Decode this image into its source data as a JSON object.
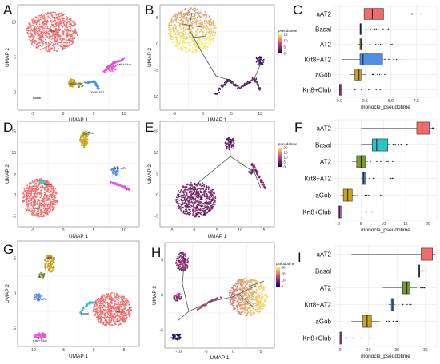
{
  "colors": {
    "aAT2": "#f26b6b",
    "Basal": "#2ec4c4",
    "AT2": "#7a9a2a",
    "Krt8+AT2": "#4f8fe6",
    "aGob": "#c9a21a",
    "Krt8+Club": "#e64fd6",
    "pseudotime_low": "#1e0a5a",
    "pseudotime_mid": "#c2407a",
    "pseudotime_high": "#f5e86a",
    "trajectory": "#555555",
    "grid": "#e3e3e3"
  },
  "chart_data": [
    {
      "panel": "A",
      "type": "scatter",
      "xlabel": "UMAP 1",
      "ylabel": "UMAP 2",
      "xticks": [
        "-5",
        "0",
        "5",
        "10"
      ],
      "yticks": [
        "10",
        "5",
        "0"
      ],
      "cluster_labels": [
        "aAT2",
        "aGob",
        "Basal",
        "Krt8+AT2",
        "Krt8+Club"
      ]
    },
    {
      "panel": "B",
      "type": "scatter",
      "xlabel": "UMAP 1",
      "ylabel": "UMAP 2",
      "xticks": [
        "-5",
        "0",
        "5",
        "10"
      ],
      "yticks": [
        "5",
        "0",
        "-5",
        "-10"
      ],
      "legend_title": "pseudotime",
      "legend_ticks": [
        "0",
        "5",
        "10",
        "15"
      ],
      "legend_placement": "right"
    },
    {
      "panel": "C",
      "type": "boxplot",
      "xlabel": "monocle_pseudotime",
      "xticks": [
        "0.0",
        "2.5",
        "5.0",
        "7.5"
      ],
      "xlim": [
        -0.5,
        9.5
      ],
      "categories": [
        "aAT2",
        "Basal",
        "AT2",
        "Krt8+AT2",
        "aGob",
        "Krt8+Club"
      ],
      "boxes": [
        {
          "category": "aAT2",
          "q1": 2.4,
          "median": 3.2,
          "q3": 4.3,
          "whisker_low": 0.1,
          "whisker_high": 7.0
        },
        {
          "category": "Basal",
          "q1": 2.0,
          "median": 2.05,
          "q3": 2.1,
          "whisker_low": 2.0,
          "whisker_high": 2.1
        },
        {
          "category": "AT2",
          "q1": 2.0,
          "median": 2.1,
          "q3": 2.2,
          "whisker_low": 1.8,
          "whisker_high": 2.3
        },
        {
          "category": "Krt8+AT2",
          "q1": 2.0,
          "median": 2.3,
          "q3": 4.2,
          "whisker_low": 0.2,
          "whisker_high": 4.3
        },
        {
          "category": "aGob",
          "q1": 1.5,
          "median": 1.9,
          "q3": 2.1,
          "whisker_low": 1.0,
          "whisker_high": 2.6
        },
        {
          "category": "Krt8+Club",
          "q1": 0.0,
          "median": 0.05,
          "q3": 0.2,
          "whisker_low": 0.0,
          "whisker_high": 0.3
        }
      ]
    },
    {
      "panel": "D",
      "type": "scatter",
      "xlabel": "UMAP 1",
      "ylabel": "UMAP 2",
      "xticks": [
        "-5",
        "0",
        "5",
        "10"
      ],
      "yticks": [
        "15",
        "10",
        "5",
        "0",
        "-5"
      ],
      "cluster_labels": [
        "aGob",
        "Krt8+AT2",
        "Basal",
        "aAT2"
      ]
    },
    {
      "panel": "E",
      "type": "scatter",
      "xlabel": "UMAP 1",
      "ylabel": "UMAP 2",
      "xticks": [
        "-5",
        "0",
        "5",
        "10",
        "15"
      ],
      "yticks": [
        "15",
        "10",
        "5",
        "0",
        "-5"
      ],
      "legend_title": "pseudotime",
      "legend_ticks": [
        "0",
        "5",
        "10",
        "15",
        "20"
      ],
      "legend_placement": "right"
    },
    {
      "panel": "F",
      "type": "boxplot",
      "xlabel": "monocle_pseudotime",
      "xticks": [
        "0",
        "5",
        "10",
        "15",
        "20"
      ],
      "xlim": [
        -1,
        22
      ],
      "categories": [
        "aAT2",
        "Basal",
        "AT2",
        "Krt8+AT2",
        "aGob",
        "Krt8+Club"
      ],
      "boxes": [
        {
          "category": "aAT2",
          "q1": 17.5,
          "median": 18.7,
          "q3": 20.3,
          "whisker_low": 5.0,
          "whisker_high": 21.0
        },
        {
          "category": "Basal",
          "q1": 7.5,
          "median": 8.5,
          "q3": 11.0,
          "whisker_low": 5.0,
          "whisker_high": 11.5
        },
        {
          "category": "AT2",
          "q1": 4.0,
          "median": 5.0,
          "q3": 6.0,
          "whisker_low": 3.0,
          "whisker_high": 6.5
        },
        {
          "category": "Krt8+AT2",
          "q1": 5.3,
          "median": 5.6,
          "q3": 5.9,
          "whisker_low": 5.0,
          "whisker_high": 6.0
        },
        {
          "category": "aGob",
          "q1": 1.0,
          "median": 2.0,
          "q3": 3.0,
          "whisker_low": 0.5,
          "whisker_high": 3.8
        },
        {
          "category": "Krt8+Club",
          "q1": 0.0,
          "median": 0.2,
          "q3": 0.5,
          "whisker_low": 0.0,
          "whisker_high": 0.6
        }
      ]
    },
    {
      "panel": "G",
      "type": "scatter",
      "xlabel": "UMAP 1",
      "ylabel": "UMAP 2",
      "xticks": [
        "-10",
        "-5",
        "0",
        "5"
      ],
      "yticks": [
        "5",
        "0",
        "-5"
      ],
      "cluster_labels": [
        "aGob",
        "AT2",
        "Krt8+AT2",
        "Basal",
        "aAT2",
        "Krt8+Club"
      ]
    },
    {
      "panel": "H",
      "type": "scatter",
      "xlabel": "UMAP 1",
      "ylabel": "UMAP 2",
      "xticks": [
        "-10",
        "-5",
        "0",
        "5"
      ],
      "yticks": [
        "5",
        "0",
        "-5"
      ],
      "legend_title": "pseudotime",
      "legend_ticks": [
        "0",
        "10",
        "20",
        "30"
      ],
      "legend_placement": "right"
    },
    {
      "panel": "I",
      "type": "boxplot",
      "xlabel": "monocle_pseudotime",
      "xticks": [
        "0",
        "10",
        "20",
        "30"
      ],
      "xlim": [
        -2,
        34
      ],
      "categories": [
        "aAT2",
        "Basal",
        "AT2",
        "Krt8+AT2",
        "aGob",
        "Krt8+Club"
      ],
      "boxes": [
        {
          "category": "aAT2",
          "q1": 28.5,
          "median": 30.2,
          "q3": 32.5,
          "whisker_low": 4.0,
          "whisker_high": 33.5
        },
        {
          "category": "Basal",
          "q1": 27.5,
          "median": 27.8,
          "q3": 28.0,
          "whisker_low": 27.5,
          "whisker_high": 28.0
        },
        {
          "category": "AT2",
          "q1": 22.0,
          "median": 23.5,
          "q3": 24.5,
          "whisker_low": 15.0,
          "whisker_high": 27.0
        },
        {
          "category": "Krt8+AT2",
          "q1": 18.0,
          "median": 18.5,
          "q3": 19.0,
          "whisker_low": 17.0,
          "whisker_high": 19.5
        },
        {
          "category": "aGob",
          "q1": 8.0,
          "median": 9.5,
          "q3": 11.0,
          "whisker_low": 4.0,
          "whisker_high": 14.0
        },
        {
          "category": "Krt8+Club",
          "q1": 0.0,
          "median": 0.0,
          "q3": 0.0,
          "whisker_low": 0.0,
          "whisker_high": 0.0
        }
      ]
    }
  ]
}
